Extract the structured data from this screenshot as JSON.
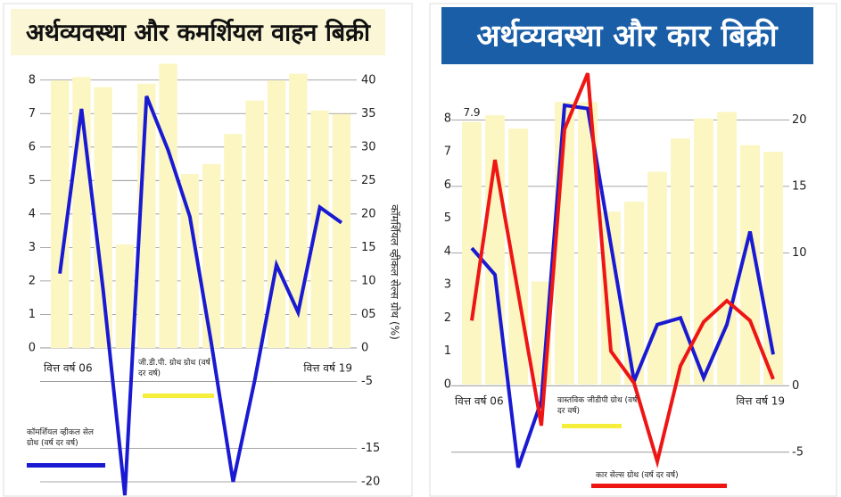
{
  "chart_data": [
    {
      "type": "combo",
      "title": "अर्थव्यवस्था और कमर्शियल वाहन बिक्री",
      "y2label": "कॉमर्शियल व्हीकल सेल्स ग्रोथ (%)",
      "categories": [
        "वित्त वर्ष 06",
        null,
        null,
        null,
        null,
        null,
        null,
        null,
        null,
        null,
        null,
        null,
        null,
        "वित्त वर्ष 19"
      ],
      "ylim": [
        -4.4,
        8.27
      ],
      "yticks": [
        0,
        1,
        2,
        3,
        4,
        5,
        6,
        7,
        8
      ],
      "y2lim": [
        -22,
        41.3
      ],
      "y2ticks": [
        40,
        35,
        30,
        25,
        20,
        15,
        10,
        {
          "value": 5,
          "label": "05"
        },
        0,
        -5,
        -15,
        -20
      ],
      "grid": true,
      "series": [
        {
          "name": "जी.डी.पी. ग्रोथ ग्रोथ (वर्ष दर वर्ष)",
          "type": "bar",
          "axis": "y",
          "color": "#fbf6c2",
          "values": [
            8.0,
            8.1,
            7.8,
            3.1,
            7.9,
            8.5,
            5.2,
            5.5,
            6.4,
            7.4,
            8.0,
            8.2,
            7.1,
            7.0
          ]
        },
        {
          "name": "कॉमर्शियल व्हीकल सेल ग्रोथ (वर्ष दर वर्ष)",
          "type": "line",
          "axis": "y2",
          "color": "#1a1ad2",
          "values": [
            11.1,
            35.7,
            8.6,
            -22,
            37.6,
            29.5,
            19.6,
            0.6,
            -20,
            -4.8,
            12.4,
            5.3,
            21,
            18.7
          ]
        }
      ]
    },
    {
      "type": "combo",
      "title": "अर्थव्यवस्था और कार बिक्री",
      "annotation": "7.9",
      "categories": [
        "वित्त वर्ष 06",
        null,
        null,
        null,
        null,
        null,
        null,
        null,
        null,
        null,
        null,
        null,
        null,
        "वित्त वर्ष 19"
      ],
      "ylim": [
        -3.2,
        8.4
      ],
      "yticks": [
        0,
        1,
        2,
        3,
        4,
        5,
        6,
        7,
        8
      ],
      "y2lim": [
        -7.9,
        21.1
      ],
      "y2ticks": [
        20,
        15,
        10,
        0,
        -5
      ],
      "grid": true,
      "series": [
        {
          "name": "वास्तविक जीडीपी ग्रोथ (वर्ष दर वर्ष)",
          "type": "bar",
          "axis": "y",
          "color": "#fbf6c2",
          "values": [
            7.9,
            8.1,
            7.7,
            3.1,
            8.5,
            8.5,
            5.2,
            5.5,
            6.4,
            7.4,
            8.0,
            8.2,
            7.2,
            7.0
          ]
        },
        {
          "type": "line",
          "axis": "y",
          "color": "#1a1ad2",
          "values": [
            4.1,
            3.3,
            -2.5,
            -0.5,
            8.4,
            8.3,
            4.2,
            0.1,
            1.8,
            2.0,
            0.2,
            1.8,
            4.6,
            0.9
          ]
        },
        {
          "name": "कार सेल्स ग्रोथ (वर्ष दर वर्ष)",
          "type": "line",
          "axis": "y2",
          "color": "#ee1515",
          "values": [
            4.9,
            17,
            7,
            -3,
            19.3,
            23.5,
            2.6,
            0.2,
            -5.7,
            1.5,
            4.8,
            6.4,
            4.9,
            0.5
          ]
        }
      ]
    }
  ]
}
